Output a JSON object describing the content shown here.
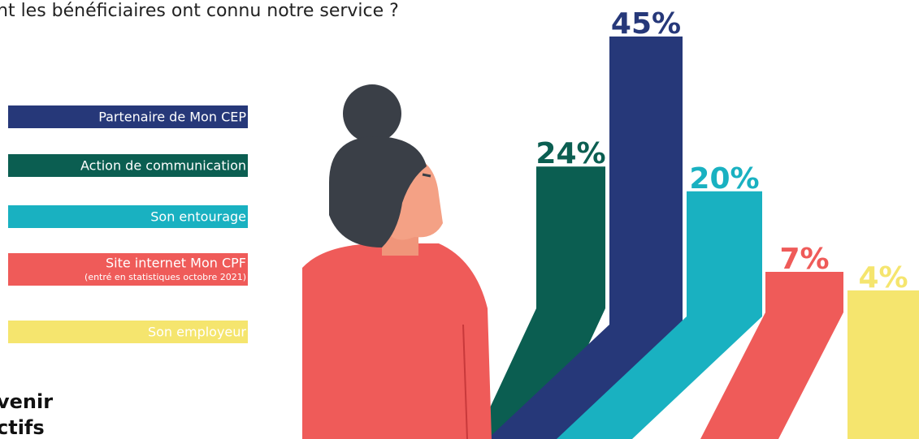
{
  "chart_data": {
    "type": "bar",
    "title": "nt les bénéficiaires ont connu notre service ?",
    "categories": [
      "Action de communication",
      "Partenaire de Mon CEP",
      "Son entourage",
      "Site internet Mon CPF",
      "Son employeur"
    ],
    "category_note": "(entré en statistiques octobre 2021)",
    "values": [
      24,
      45,
      20,
      7,
      4
    ],
    "value_labels": [
      "24%",
      "45%",
      "20%",
      "7%",
      "4%"
    ],
    "colors": [
      "#0b5e51",
      "#263879",
      "#19b1c1",
      "#ef5b59",
      "#f5e56e"
    ],
    "ylim": [
      -20,
      45
    ],
    "logo_lines": [
      "venir",
      "ctifs"
    ]
  }
}
